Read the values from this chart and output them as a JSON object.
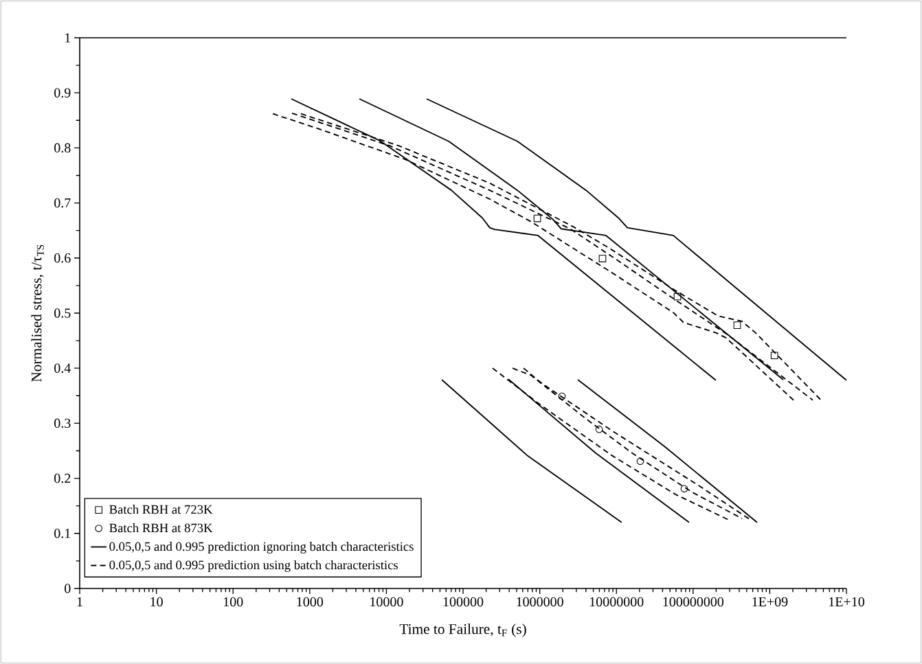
{
  "chart_data": {
    "type": "line",
    "xlabel": "Time to Failure, t$_{F}$ (s)",
    "ylabel": "Normalised stress, t/τ$_{TS}$",
    "log": "x",
    "xlim": [
      1,
      10000000000
    ],
    "ylim": [
      0,
      1
    ],
    "xticks": [
      1,
      10,
      100,
      1000,
      10000,
      100000,
      1000000,
      10000000,
      100000000,
      {
        "value": 1000000000,
        "label": "1E+09"
      },
      {
        "value": 10000000000,
        "label": "1E+10"
      }
    ],
    "yticks": [
      0,
      0.1,
      0.2,
      0.3,
      0.4,
      0.5,
      0.6,
      0.7,
      0.8,
      0.9,
      1
    ],
    "legend": "bottom left",
    "series": [
      {
        "type": "scatter",
        "marker": "square",
        "name": "Batch RBH at 723K",
        "color": "#000000",
        "x": [
          929000,
          6590000,
          62500000,
          376000000,
          1150000000
        ],
        "values": [
          0.672,
          0.599,
          0.53,
          0.478,
          0.423
        ]
      },
      {
        "type": "scatter",
        "marker": "circle",
        "name": "Batch RBH at 873K",
        "color": "#000000",
        "x": [
          1950000,
          5950000,
          20500000,
          76800000
        ],
        "values": [
          0.349,
          0.289,
          0.231,
          0.181
        ]
      },
      {
        "line_style": "solid",
        "name": "0.05,0,5 and 0.995 prediction ignoring batch characteristics",
        "color": "#000000",
        "x": [
          575,
          8240,
          70500,
          178000,
          223000,
          258000,
          949000,
          198000000
        ],
        "values": [
          0.889,
          0.813,
          0.723,
          0.673,
          0.655,
          0.652,
          0.641,
          0.378
        ]
      },
      {
        "line_style": "solid",
        "color": "#000000",
        "x": [
          4440,
          64900,
          511000,
          1490000,
          1910000,
          7310000,
          1500000000
        ],
        "values": [
          0.889,
          0.812,
          0.723,
          0.67,
          0.653,
          0.641,
          0.379
        ]
      },
      {
        "line_style": "solid",
        "color": "#000000",
        "x": [
          33500,
          511000,
          4020000,
          10600000,
          13900000,
          55200000,
          10000000000
        ],
        "values": [
          0.889,
          0.812,
          0.723,
          0.673,
          0.655,
          0.641,
          0.378
        ]
      },
      {
        "line_style": "solid",
        "color": "#000000",
        "x": [
          52800,
          681000,
          11700000
        ],
        "values": [
          0.379,
          0.242,
          0.12
        ]
      },
      {
        "line_style": "solid",
        "color": "#000000",
        "x": [
          390000,
          5360000,
          88700000
        ],
        "values": [
          0.38,
          0.246,
          0.12
        ]
      },
      {
        "line_style": "solid",
        "color": "#000000",
        "x": [
          3140000,
          42200000,
          684000000
        ],
        "values": [
          0.379,
          0.258,
          0.12
        ]
      },
      {
        "line_style": "dashed",
        "name": "0.05,0,5 and 0.995 prediction using batch characteristics",
        "color": "#000000",
        "x": [
          330,
          1290,
          17700,
          223000,
          771000,
          8610000,
          55200000,
          75200000,
          202000000,
          270000000,
          2040000000
        ],
        "values": [
          0.862,
          0.835,
          0.779,
          0.707,
          0.666,
          0.574,
          0.501,
          0.483,
          0.464,
          0.455,
          0.342
        ]
      },
      {
        "line_style": "dashed",
        "color": "#000000",
        "x": [
          587,
          11000,
          223000,
          2500000,
          8270000,
          58700000,
          288000000,
          3640000000
        ],
        "values": [
          0.863,
          0.804,
          0.723,
          0.653,
          0.605,
          0.524,
          0.46,
          0.342
        ]
      },
      {
        "line_style": "dashed",
        "color": "#000000",
        "x": [
          768,
          14400,
          223000,
          2890000,
          8270000,
          58700000,
          211000000,
          435000000,
          656000000,
          4660000000
        ],
        "values": [
          0.862,
          0.804,
          0.736,
          0.655,
          0.617,
          0.541,
          0.495,
          0.485,
          0.464,
          0.342
        ]
      },
      {
        "line_style": "dashed",
        "color": "#000000",
        "x": [
          243000,
          1030000,
          8610000,
          58700000,
          306000000
        ],
        "values": [
          0.4,
          0.333,
          0.242,
          0.171,
          0.123
        ]
      },
      {
        "line_style": "dashed",
        "color": "#000000",
        "x": [
          442000,
          771000,
          4020000,
          16000000,
          96400000,
          435000000
        ],
        "values": [
          0.4,
          0.387,
          0.308,
          0.246,
          0.175,
          0.127
        ]
      },
      {
        "line_style": "dashed",
        "color": "#000000",
        "x": [
          615000,
          1030000,
          8610000,
          118000000,
          557000000
        ],
        "values": [
          0.4,
          0.374,
          0.287,
          0.187,
          0.125
        ]
      }
    ]
  }
}
